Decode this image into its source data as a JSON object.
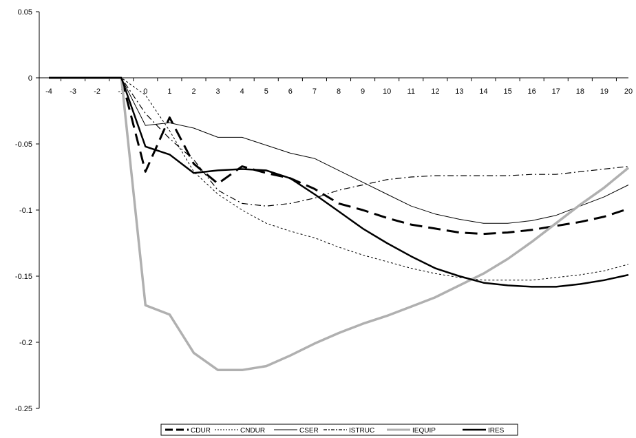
{
  "chart_data": {
    "type": "line",
    "title": "",
    "xlabel": "",
    "ylabel": "",
    "x": [
      -4,
      -3,
      -2,
      -1,
      0,
      1,
      2,
      3,
      4,
      5,
      6,
      7,
      8,
      9,
      10,
      11,
      12,
      13,
      14,
      15,
      16,
      17,
      18,
      19,
      20
    ],
    "xticks": [
      "-4",
      "-3",
      "-2",
      "-1",
      "0",
      "1",
      "2",
      "3",
      "4",
      "5",
      "6",
      "7",
      "8",
      "9",
      "10",
      "11",
      "12",
      "13",
      "14",
      "15",
      "16",
      "17",
      "18",
      "19",
      "20"
    ],
    "yticks": [
      "0.05",
      "0",
      "-0.05",
      "-0.1",
      "-0.15",
      "-0.2",
      "-0.25"
    ],
    "ylim": [
      -0.25,
      0.05
    ],
    "grid": false,
    "legend_position": "bottom",
    "series": [
      {
        "name": "CDUR",
        "values": [
          0,
          0,
          0,
          0,
          -0.071,
          -0.03,
          -0.065,
          -0.08,
          -0.067,
          -0.072,
          -0.076,
          -0.084,
          -0.095,
          -0.1,
          -0.106,
          -0.111,
          -0.114,
          -0.117,
          -0.118,
          -0.117,
          -0.115,
          -0.112,
          -0.109,
          -0.105,
          -0.099
        ]
      },
      {
        "name": "CNDUR",
        "values": [
          0,
          0,
          0,
          0,
          -0.013,
          -0.04,
          -0.071,
          -0.088,
          -0.1,
          -0.11,
          -0.116,
          -0.121,
          -0.128,
          -0.134,
          -0.139,
          -0.144,
          -0.148,
          -0.151,
          -0.153,
          -0.153,
          -0.153,
          -0.151,
          -0.149,
          -0.146,
          -0.141
        ]
      },
      {
        "name": "CSER",
        "values": [
          0,
          0,
          0,
          0,
          -0.036,
          -0.034,
          -0.038,
          -0.045,
          -0.045,
          -0.051,
          -0.057,
          -0.061,
          -0.07,
          -0.079,
          -0.088,
          -0.097,
          -0.103,
          -0.107,
          -0.11,
          -0.11,
          -0.108,
          -0.104,
          -0.097,
          -0.09,
          -0.081
        ]
      },
      {
        "name": "ISTRUC",
        "values": [
          0,
          0,
          0,
          0,
          -0.027,
          -0.046,
          -0.062,
          -0.085,
          -0.095,
          -0.097,
          -0.095,
          -0.091,
          -0.085,
          -0.081,
          -0.077,
          -0.075,
          -0.074,
          -0.074,
          -0.074,
          -0.074,
          -0.073,
          -0.073,
          -0.071,
          -0.069,
          -0.067
        ]
      },
      {
        "name": "IEQUIP",
        "values": [
          0,
          0,
          0,
          0,
          -0.172,
          -0.179,
          -0.208,
          -0.221,
          -0.221,
          -0.218,
          -0.21,
          -0.201,
          -0.193,
          -0.186,
          -0.18,
          -0.173,
          -0.166,
          -0.157,
          -0.148,
          -0.137,
          -0.124,
          -0.11,
          -0.096,
          -0.083,
          -0.068
        ]
      },
      {
        "name": "IRES",
        "values": [
          0,
          0,
          0,
          0,
          -0.052,
          -0.058,
          -0.072,
          -0.07,
          -0.069,
          -0.07,
          -0.076,
          -0.088,
          -0.101,
          -0.114,
          -0.125,
          -0.135,
          -0.144,
          -0.15,
          -0.155,
          -0.157,
          -0.158,
          -0.158,
          -0.156,
          -0.153,
          -0.149
        ]
      }
    ],
    "colors": {
      "axis": "#000000",
      "CDUR": "#000000",
      "CNDUR": "#000000",
      "CSER": "#000000",
      "ISTRUC": "#000000",
      "IEQUIP": "#b0b0b0",
      "IRES": "#000000"
    }
  }
}
